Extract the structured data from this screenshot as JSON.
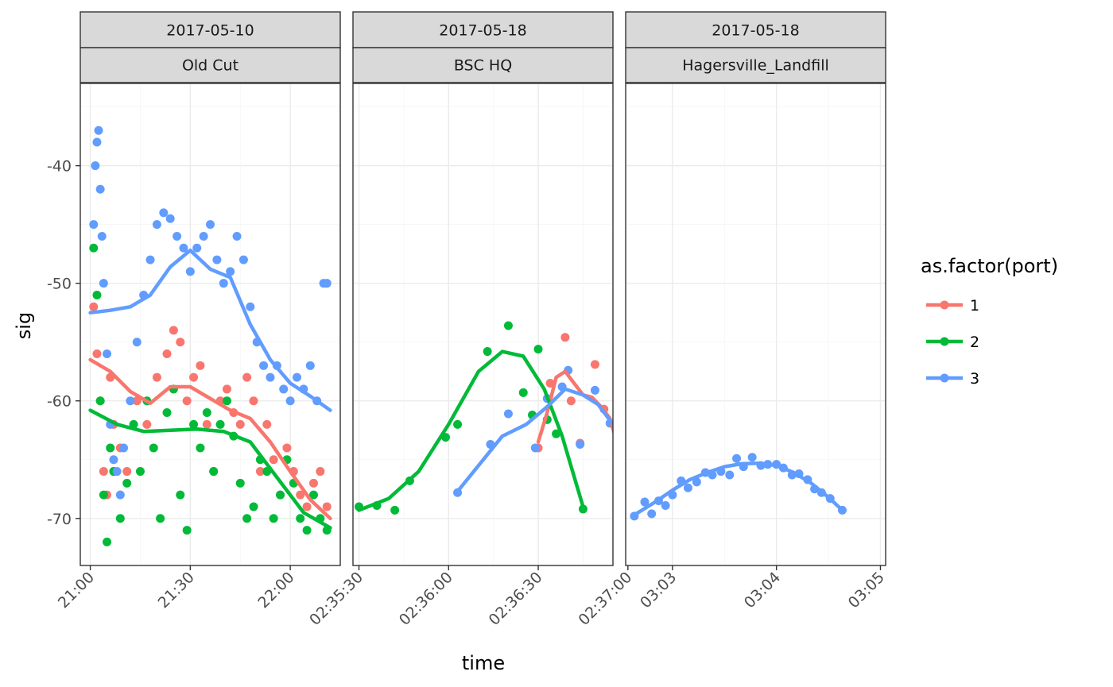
{
  "chart_data": {
    "type": "scatter",
    "title": "",
    "xlabel": "time",
    "ylabel": "sig",
    "ylim": [
      -74,
      -33
    ],
    "yticks": [
      -40,
      -50,
      -60,
      -70
    ],
    "ytick_labels": [
      "-40",
      "-50",
      "-60",
      "-70"
    ],
    "grid": true,
    "smooth_lines": true,
    "legend": {
      "title": "as.factor(port)",
      "placement": "right",
      "entries": [
        {
          "label": "1",
          "color": "#F8766D"
        },
        {
          "label": "2",
          "color": "#00BA38"
        },
        {
          "label": "3",
          "color": "#619CFF"
        }
      ]
    },
    "panels": [
      {
        "date": "2017-05-10",
        "site": "Old Cut",
        "x_unit": "minutes since 21:00",
        "xlim": [
          -3,
          75
        ],
        "xticks": [
          0,
          30,
          60
        ],
        "xtick_labels": [
          "21:00",
          "21:30",
          "22:00"
        ],
        "series": [
          {
            "name": "1",
            "x": [
              1,
              2,
              3,
              4,
              5,
              6,
              7,
              9,
              11,
              14,
              17,
              20,
              23,
              25,
              27,
              29,
              31,
              33,
              35,
              37,
              39,
              41,
              43,
              45,
              47,
              49,
              51,
              53,
              55,
              57,
              59,
              61,
              63,
              65,
              67,
              69,
              71
            ],
            "y": [
              -52,
              -56,
              -60,
              -66,
              -68,
              -58,
              -62,
              -64,
              -66,
              -60,
              -62,
              -58,
              -56,
              -54,
              -55,
              -60,
              -58,
              -57,
              -62,
              -66,
              -60,
              -59,
              -61,
              -62,
              -58,
              -60,
              -66,
              -62,
              -65,
              -68,
              -64,
              -66,
              -68,
              -69,
              -67,
              -66,
              -69
            ],
            "smooth_x": [
              0,
              6,
              12,
              18,
              24,
              30,
              36,
              42,
              48,
              54,
              60,
              66,
              72
            ],
            "smooth_y": [
              -56.5,
              -57.5,
              -59.2,
              -60.2,
              -58.8,
              -58.8,
              -59.8,
              -60.8,
              -61.5,
              -63.5,
              -66,
              -68.4,
              -70
            ]
          },
          {
            "name": "2",
            "x": [
              1,
              2,
              3,
              4,
              5,
              6,
              7,
              9,
              11,
              13,
              15,
              17,
              19,
              21,
              23,
              25,
              27,
              29,
              31,
              33,
              35,
              37,
              39,
              41,
              43,
              45,
              47,
              49,
              51,
              53,
              55,
              57,
              59,
              61,
              63,
              65,
              67,
              69,
              71
            ],
            "y": [
              -47,
              -51,
              -60,
              -68,
              -72,
              -64,
              -66,
              -70,
              -67,
              -62,
              -66,
              -60,
              -64,
              -70,
              -61,
              -59,
              -68,
              -71,
              -62,
              -64,
              -61,
              -66,
              -62,
              -60,
              -63,
              -67,
              -70,
              -69,
              -65,
              -66,
              -70,
              -68,
              -65,
              -67,
              -70,
              -71,
              -68,
              -70,
              -71
            ],
            "smooth_x": [
              0,
              8,
              16,
              24,
              32,
              40,
              48,
              56,
              64,
              72
            ],
            "smooth_y": [
              -60.8,
              -62,
              -62.6,
              -62.5,
              -62.4,
              -62.6,
              -63.5,
              -66.5,
              -69.5,
              -70.8
            ]
          },
          {
            "name": "3",
            "x": [
              1,
              1.5,
              2,
              2.5,
              3,
              3.5,
              4,
              5,
              6,
              7,
              8,
              9,
              10,
              12,
              14,
              16,
              18,
              20,
              22,
              24,
              26,
              28,
              30,
              32,
              34,
              36,
              38,
              40,
              42,
              44,
              46,
              48,
              50,
              52,
              54,
              56,
              58,
              60,
              62,
              64,
              66,
              68,
              70,
              71
            ],
            "y": [
              -45,
              -40,
              -38,
              -37,
              -42,
              -46,
              -50,
              -56,
              -62,
              -65,
              -66,
              -68,
              -64,
              -60,
              -55,
              -51,
              -48,
              -45,
              -44,
              -44.5,
              -46,
              -47,
              -49,
              -47,
              -46,
              -45,
              -48,
              -50,
              -49,
              -46,
              -48,
              -52,
              -55,
              -57,
              -58,
              -57,
              -59,
              -60,
              -58,
              -59,
              -57,
              -60,
              -50,
              -50
            ],
            "smooth_x": [
              0,
              6,
              12,
              18,
              24,
              30,
              36,
              42,
              48,
              54,
              60,
              66,
              72
            ],
            "smooth_y": [
              -52.5,
              -52.3,
              -52,
              -51,
              -48.6,
              -47.2,
              -48.8,
              -49.5,
              -53.5,
              -56.5,
              -58.5,
              -59.6,
              -60.8
            ]
          }
        ]
      },
      {
        "date": "2017-05-18",
        "site": "BSC HQ",
        "x_unit": "seconds since 02:35:30",
        "xlim": [
          -2,
          85
        ],
        "xticks": [
          0,
          30,
          60,
          90
        ],
        "xtick_labels": [
          "02:35:30",
          "02:36:00",
          "02:36:30",
          "02:37:00"
        ],
        "series": [
          {
            "name": "1",
            "x": [
              60,
              64,
              69,
              71,
              74,
              79,
              82,
              88
            ],
            "y": [
              -64,
              -58.5,
              -54.6,
              -60,
              -63.6,
              -56.9,
              -60.7,
              -65
            ],
            "smooth_x": [
              60,
              63,
              66,
              69,
              72,
              75,
              78,
              81,
              84,
              88
            ],
            "smooth_y": [
              -63.5,
              -61,
              -58,
              -57.5,
              -58.5,
              -59.5,
              -59.7,
              -60.5,
              -61.5,
              -65
            ]
          },
          {
            "name": "2",
            "x": [
              0,
              6,
              12,
              17,
              29,
              33,
              43,
              50,
              55,
              58,
              60,
              63,
              66,
              75
            ],
            "y": [
              -69,
              -68.9,
              -69.3,
              -66.8,
              -63.1,
              -62,
              -55.8,
              -53.6,
              -59.3,
              -61.2,
              -55.6,
              -61.6,
              -62.8,
              -69.2
            ],
            "smooth_x": [
              0,
              10,
              20,
              30,
              40,
              48,
              55,
              62,
              68,
              75
            ],
            "smooth_y": [
              -69.3,
              -68.3,
              -66,
              -62,
              -57.5,
              -55.8,
              -56.2,
              -59,
              -63,
              -69
            ]
          },
          {
            "name": "3",
            "x": [
              33,
              44,
              50,
              59,
              63,
              68,
              70,
              74,
              79,
              84
            ],
            "y": [
              -67.8,
              -63.7,
              -61.1,
              -64,
              -59.8,
              -58.8,
              -57.4,
              -63.7,
              -59.1,
              -61.9
            ],
            "smooth_x": [
              33,
              40,
              48,
              56,
              63,
              69,
              75,
              80,
              85
            ],
            "smooth_y": [
              -67.7,
              -65.5,
              -63,
              -62,
              -60.5,
              -59,
              -59.5,
              -60.3,
              -62
            ]
          }
        ]
      },
      {
        "date": "2017-05-18",
        "site": "Hagersville_Landfill",
        "x_unit": "seconds since 03:03:00",
        "xlim": [
          -27,
          123
        ],
        "xticks": [
          0,
          60,
          120
        ],
        "xtick_labels": [
          "03:03",
          "03:04",
          "03:05"
        ],
        "series": [
          {
            "name": "3",
            "x": [
              -22,
              -16,
              -12,
              -8,
              -4,
              0,
              5,
              9,
              14,
              19,
              23,
              28,
              33,
              37,
              41,
              46,
              51,
              55,
              60,
              64,
              69,
              73,
              78,
              82,
              86,
              91,
              98
            ],
            "y": [
              -69.8,
              -68.6,
              -69.6,
              -68.5,
              -68.9,
              -68.0,
              -66.8,
              -67.4,
              -66.9,
              -66.1,
              -66.3,
              -66.0,
              -66.3,
              -64.9,
              -65.6,
              -64.8,
              -65.5,
              -65.4,
              -65.4,
              -65.7,
              -66.3,
              -66.2,
              -66.7,
              -67.5,
              -67.8,
              -68.3,
              -69.3
            ],
            "smooth_x": [
              -22,
              -10,
              0,
              10,
              20,
              30,
              40,
              50,
              60,
              70,
              80,
              90,
              98
            ],
            "smooth_y": [
              -69.7,
              -68.6,
              -67.6,
              -66.7,
              -66.1,
              -65.6,
              -65.35,
              -65.3,
              -65.5,
              -66.1,
              -67,
              -68.2,
              -69.3
            ]
          }
        ]
      }
    ]
  }
}
